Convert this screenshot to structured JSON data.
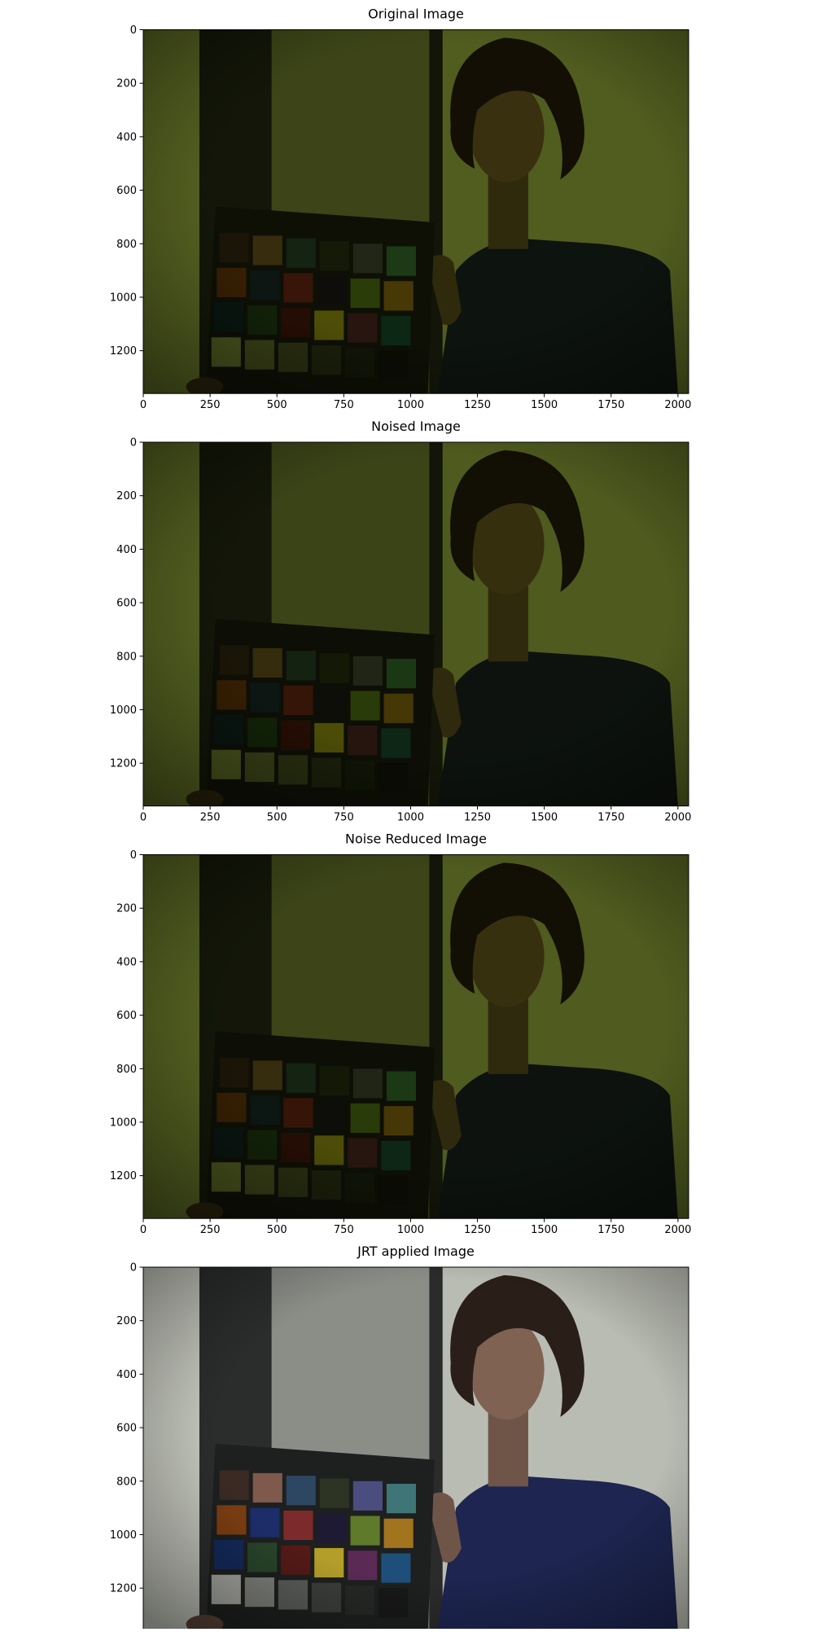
{
  "chart_data": [
    {
      "type": "image",
      "title": "Original Image",
      "xlim": [
        0,
        2040
      ],
      "ylim": [
        1360,
        0
      ],
      "xticks": [
        0,
        250,
        500,
        750,
        1000,
        1250,
        1500,
        1750,
        2000
      ],
      "yticks": [
        0,
        200,
        400,
        600,
        800,
        1000,
        1200
      ]
    },
    {
      "type": "image",
      "title": "Noised Image",
      "xlim": [
        0,
        2040
      ],
      "ylim": [
        1360,
        0
      ],
      "xticks": [
        0,
        250,
        500,
        750,
        1000,
        1250,
        1500,
        1750,
        2000
      ],
      "yticks": [
        0,
        200,
        400,
        600,
        800,
        1000,
        1200
      ]
    },
    {
      "type": "image",
      "title": "Noise Reduced Image",
      "xlim": [
        0,
        2040
      ],
      "ylim": [
        1360,
        0
      ],
      "xticks": [
        0,
        250,
        500,
        750,
        1000,
        1250,
        1500,
        1750,
        2000
      ],
      "yticks": [
        0,
        200,
        400,
        600,
        800,
        1000,
        1200
      ]
    },
    {
      "type": "image",
      "title": "JRT applied Image",
      "xlim": [
        0,
        2040
      ],
      "ylim": [
        1360,
        0
      ],
      "xticks": [
        0,
        250,
        500,
        750,
        1000,
        1250,
        1500,
        1750,
        2000
      ],
      "yticks": [
        0,
        200,
        400,
        600,
        800,
        1000,
        1200
      ]
    }
  ]
}
